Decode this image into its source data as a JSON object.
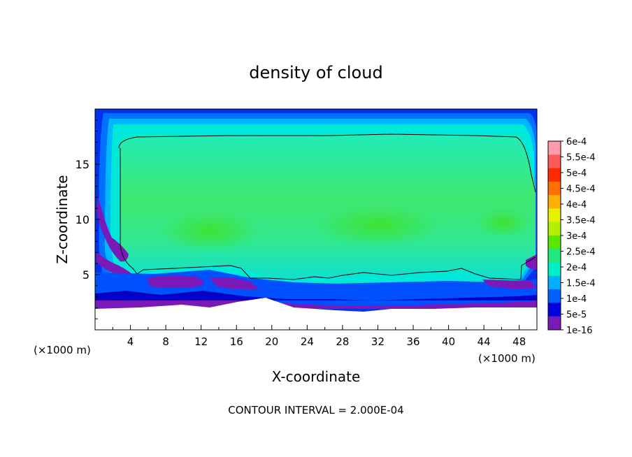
{
  "chart_data": {
    "type": "heatmap",
    "title": "density of cloud",
    "xlabel": "X-coordinate",
    "ylabel": "Z-coordinate",
    "x_unit_left": "(×1000 m)",
    "x_unit_right": "(×1000 m)",
    "footer": "CONTOUR INTERVAL = 2.000E-04",
    "xlim": [
      0,
      50
    ],
    "ylim": [
      0,
      20
    ],
    "x_ticks": [
      4,
      8,
      12,
      16,
      20,
      24,
      28,
      32,
      36,
      40,
      44,
      48
    ],
    "y_ticks": [
      5,
      10,
      15
    ],
    "colorbar": {
      "labels": [
        "6e-4",
        "5.5e-4",
        "5e-4",
        "4.5e-4",
        "4e-4",
        "3.5e-4",
        "3e-4",
        "2.5e-4",
        "2e-4",
        "1.5e-4",
        "1e-4",
        "5e-5",
        "1e-16"
      ],
      "colors": [
        "#ff9aa8",
        "#ff5a5a",
        "#ff2a00",
        "#ff7000",
        "#ffb000",
        "#e8f000",
        "#b0f000",
        "#58e800",
        "#20e880",
        "#00f0c8",
        "#00b0ff",
        "#0060ff",
        "#0000e0",
        "#7a18b8"
      ]
    }
  }
}
